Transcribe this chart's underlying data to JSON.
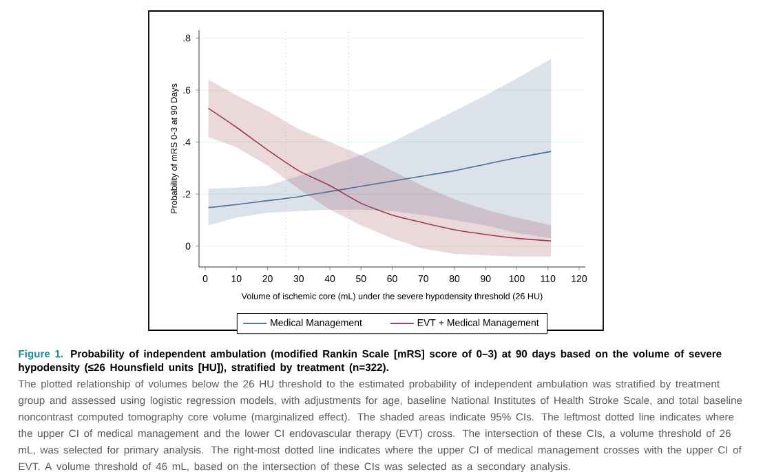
{
  "chart_data": {
    "type": "line",
    "title": "Figure 1.",
    "subtitle": "Probability of independent ambulation (modified Rankin Scale [mRS] score of 0–3) at 90 days based on the volume of severe hypodensity (≤26 Hounsfield units [HU]), stratified by treatment (n=322).",
    "xlabel": "Volume of ischemic core (mL) under the severe hypodensity threshold (26 HU)",
    "ylabel": "Probability of mRS 0-3 at 90 Days",
    "annotations": [
      "The plotted relationship of volumes below the 26 HU threshold to the estimated probability of independent ambulation was stratified by treatment group and assessed using logistic regression models, with adjustments for age, baseline National Institutes of Health Stroke Scale, and total baseline noncontrast computed tomography core volume (marginalized effect). The shaded areas indicate 95% CIs. The leftmost dotted line indicates where the upper CI of medical management and the lower CI endovascular therapy (EVT) cross. The intersection of these CIs, a volume threshold of 26 mL, was selected for primary analysis. The right-most dotted line indicates where the upper CI of medical management crosses with the upper CI of EVT. A volume threshold of 46 mL, based on the intersection of these CIs was selected as a secondary analysis."
    ],
    "x": [
      1,
      10,
      20,
      30,
      40,
      50,
      60,
      70,
      80,
      90,
      100,
      111
    ],
    "series": [
      {
        "name": "Medical Management",
        "color": "#4a6e96",
        "values": [
          0.148,
          0.16,
          0.175,
          0.19,
          0.21,
          0.23,
          0.25,
          0.27,
          0.29,
          0.315,
          0.34,
          0.364
        ],
        "lower": [
          0.08,
          0.11,
          0.128,
          0.135,
          0.14,
          0.14,
          0.135,
          0.12,
          0.1,
          0.08,
          0.05,
          0.03
        ],
        "upper": [
          0.22,
          0.225,
          0.233,
          0.27,
          0.31,
          0.35,
          0.4,
          0.46,
          0.52,
          0.58,
          0.645,
          0.72
        ]
      },
      {
        "name": "EVT + Medical Management",
        "color": "#9b3a4a",
        "values": [
          0.53,
          0.457,
          0.37,
          0.29,
          0.233,
          0.165,
          0.12,
          0.09,
          0.063,
          0.045,
          0.03,
          0.02
        ],
        "lower": [
          0.42,
          0.38,
          0.31,
          0.22,
          0.14,
          0.08,
          0.03,
          -0.01,
          -0.03,
          -0.035,
          -0.04,
          -0.04
        ],
        "upper": [
          0.64,
          0.58,
          0.52,
          0.45,
          0.4,
          0.35,
          0.29,
          0.23,
          0.18,
          0.14,
          0.11,
          0.08
        ]
      }
    ],
    "xlim": [
      -2,
      122
    ],
    "ylim": [
      -0.08,
      0.83
    ],
    "xticks": [
      0,
      10,
      20,
      30,
      40,
      50,
      60,
      70,
      80,
      90,
      100,
      110,
      120
    ],
    "yticks": [
      {
        "value": 0,
        "label": "0"
      },
      {
        "value": 0.2,
        "label": ".2"
      },
      {
        "value": 0.4,
        "label": ".4"
      },
      {
        "value": 0.6,
        "label": ".6"
      },
      {
        "value": 0.8,
        "label": ".8"
      }
    ],
    "ref_lines": [
      {
        "axis": "x",
        "value": 26,
        "line_style": "dotted",
        "color": "#bbbbbb"
      },
      {
        "axis": "x",
        "value": 46,
        "line_style": "dotted",
        "color": "#bbbbbb"
      }
    ],
    "grid": "y",
    "legend": "bottom",
    "marker": "none",
    "line_style": "solid"
  }
}
